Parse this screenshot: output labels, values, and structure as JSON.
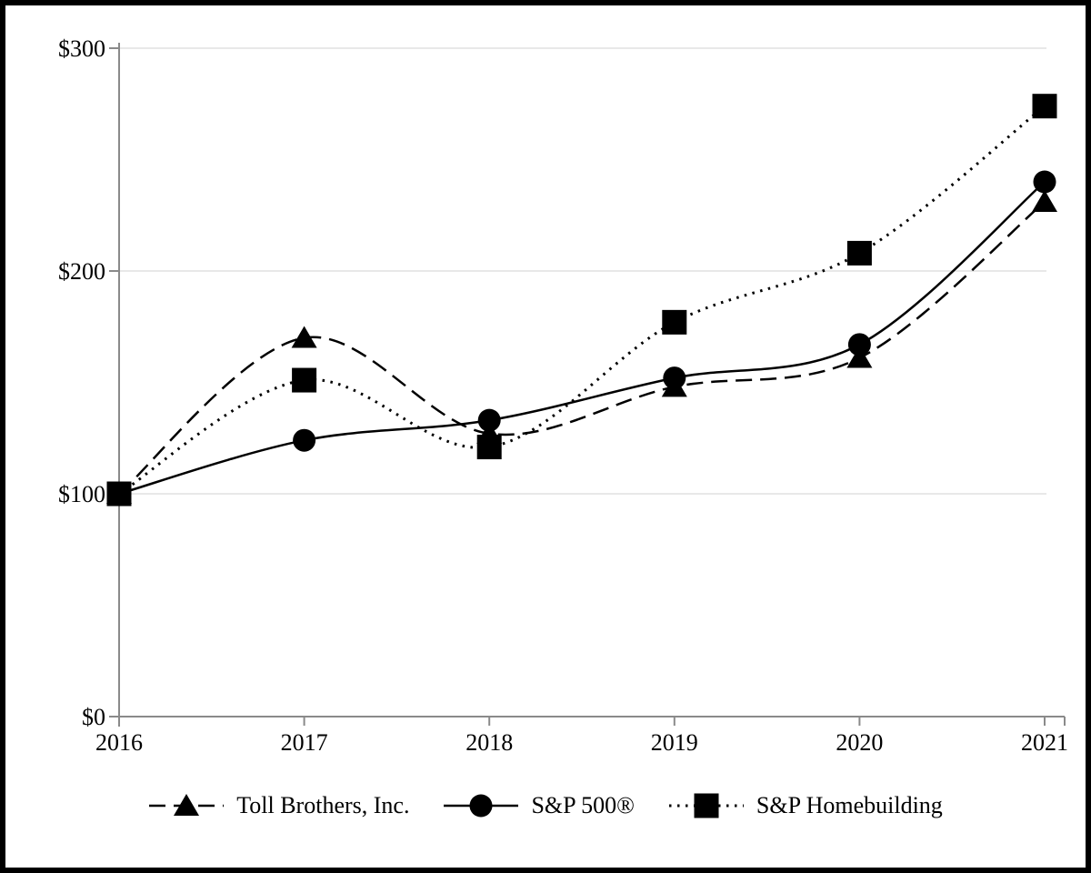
{
  "chart_data": {
    "type": "line",
    "title": "",
    "xlabel": "",
    "ylabel": "",
    "x": [
      "2016",
      "2017",
      "2018",
      "2019",
      "2020",
      "2021"
    ],
    "series": [
      {
        "name": "Toll Brothers, Inc.",
        "marker": "triangle",
        "line_style": "dashed",
        "values": [
          100,
          170,
          127,
          148,
          161,
          231
        ]
      },
      {
        "name": "S&P 500®",
        "marker": "circle",
        "line_style": "solid",
        "values": [
          100,
          124,
          133,
          152,
          167,
          240
        ]
      },
      {
        "name": "S&P Homebuilding",
        "marker": "square",
        "line_style": "dotted",
        "values": [
          100,
          151,
          121,
          177,
          208,
          274
        ]
      }
    ],
    "ylim": [
      0,
      300
    ],
    "yticks": [
      0,
      100,
      200,
      300
    ],
    "ytick_labels": [
      "$0",
      "$100",
      "$200",
      "$300"
    ],
    "grid": "horizontal-gridlines-at-100-200-300",
    "legend_position": "bottom",
    "colors": {
      "series": "#000000",
      "axis": "#8a8a8a",
      "gridline": "#e8e8e8",
      "background": "#ffffff",
      "frame": "#000000",
      "text": "#000000"
    }
  }
}
